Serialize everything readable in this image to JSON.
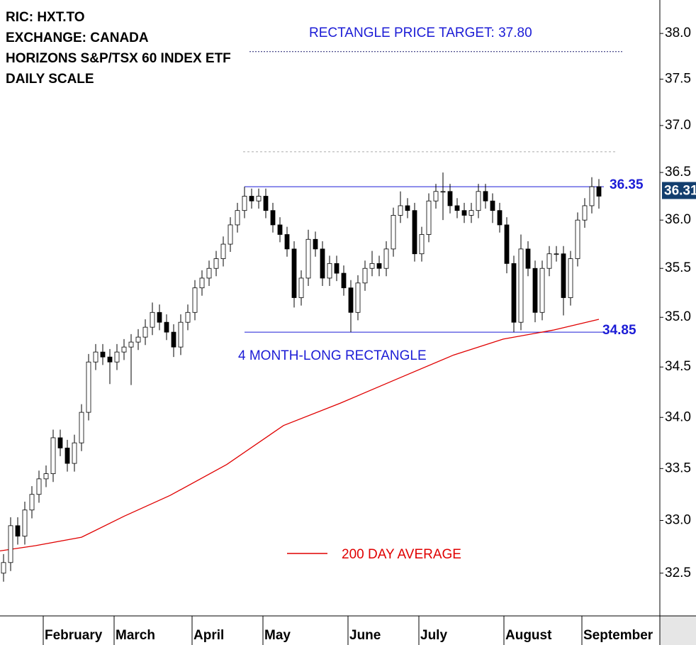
{
  "chart_data": {
    "type": "candlestick",
    "info": [
      "RIC: HXT.TO",
      "EXCHANGE: CANADA",
      "HORIZONS S&P/TSX 60 INDEX ETF",
      "DAILY SCALE"
    ],
    "log_scale": true,
    "ylim": [
      32.1,
      38.37
    ],
    "yticks": [
      32.5,
      {
        "value": 33,
        "label": "33.0"
      },
      33.5,
      {
        "value": 34,
        "label": "34.0"
      },
      34.5,
      {
        "value": 35,
        "label": "35.0"
      },
      35.5,
      {
        "value": 36,
        "label": "36.0"
      },
      36.5,
      {
        "value": 37,
        "label": "37.0"
      },
      37.5,
      {
        "value": 38,
        "label": "38.0"
      }
    ],
    "categories": [
      null,
      null,
      null,
      null,
      null,
      null,
      "February",
      null,
      null,
      null,
      null,
      null,
      null,
      null,
      null,
      null,
      "March",
      null,
      null,
      null,
      null,
      null,
      null,
      null,
      null,
      null,
      null,
      "April",
      null,
      null,
      null,
      null,
      null,
      null,
      null,
      null,
      null,
      "May",
      null,
      null,
      null,
      null,
      null,
      null,
      null,
      null,
      null,
      null,
      null,
      "June",
      null,
      null,
      null,
      null,
      null,
      null,
      null,
      null,
      null,
      "July",
      null,
      null,
      null,
      null,
      null,
      null,
      null,
      null,
      null,
      null,
      null,
      "August",
      null,
      null,
      null,
      null,
      null,
      null,
      null,
      null,
      null,
      null,
      "September",
      null,
      null
    ],
    "open": [
      32.5,
      32.6,
      32.95,
      32.85,
      33.1,
      33.25,
      33.4,
      33.45,
      33.8,
      33.7,
      33.55,
      33.75,
      34.05,
      34.55,
      34.65,
      34.6,
      34.55,
      34.65,
      34.7,
      34.75,
      34.8,
      34.9,
      35.05,
      34.95,
      34.85,
      34.7,
      34.95,
      35.05,
      35.3,
      35.4,
      35.5,
      35.6,
      35.75,
      35.95,
      36.1,
      36.25,
      36.2,
      36.25,
      36.1,
      35.95,
      35.85,
      35.7,
      35.2,
      35.4,
      35.8,
      35.7,
      35.4,
      35.55,
      35.45,
      35.3,
      35.05,
      35.35,
      35.5,
      35.55,
      35.5,
      35.7,
      36.05,
      36.15,
      36.1,
      35.65,
      35.85,
      36.2,
      36.3,
      36.3,
      36.15,
      36.1,
      36.05,
      36.1,
      36.3,
      36.2,
      36.1,
      35.95,
      35.55,
      34.95,
      35.7,
      35.5,
      35.05,
      35.5,
      35.65,
      35.65,
      35.2,
      35.6,
      36.0,
      36.15,
      36.35
    ],
    "high": [
      32.68,
      33.03,
      33.03,
      33.18,
      33.33,
      33.48,
      33.53,
      33.88,
      33.88,
      33.78,
      33.83,
      34.13,
      34.63,
      34.73,
      34.73,
      34.68,
      34.73,
      34.78,
      34.83,
      34.88,
      34.98,
      35.15,
      35.13,
      35.03,
      34.93,
      35.03,
      35.13,
      35.38,
      35.48,
      35.58,
      35.68,
      35.83,
      36.03,
      36.18,
      36.35,
      36.33,
      36.33,
      36.33,
      36.18,
      36.03,
      35.93,
      35.78,
      35.48,
      35.9,
      35.88,
      35.78,
      35.63,
      35.63,
      35.53,
      35.38,
      35.43,
      35.58,
      35.68,
      35.63,
      35.78,
      36.13,
      36.3,
      36.23,
      36.18,
      35.93,
      36.28,
      36.38,
      36.5,
      36.38,
      36.23,
      36.18,
      36.18,
      36.38,
      36.38,
      36.28,
      36.18,
      36.03,
      35.63,
      35.85,
      35.78,
      35.58,
      35.58,
      35.73,
      35.73,
      35.73,
      35.68,
      36.08,
      36.23,
      36.45,
      36.43
    ],
    "low": [
      32.42,
      32.52,
      32.77,
      32.77,
      33.02,
      33.17,
      33.32,
      33.37,
      33.62,
      33.47,
      33.47,
      33.67,
      33.97,
      34.47,
      34.52,
      34.33,
      34.47,
      34.57,
      34.32,
      34.67,
      34.72,
      34.82,
      34.87,
      34.77,
      34.6,
      34.62,
      34.87,
      34.97,
      35.22,
      35.32,
      35.42,
      35.52,
      35.67,
      35.87,
      36.02,
      36.12,
      36.12,
      36.02,
      35.87,
      35.77,
      35.62,
      35.1,
      35.12,
      35.32,
      35.62,
      35.32,
      35.32,
      35.37,
      35.22,
      34.85,
      34.97,
      35.27,
      35.42,
      35.42,
      35.42,
      35.62,
      35.97,
      36.02,
      35.57,
      35.57,
      35.77,
      36.12,
      36.0,
      36.07,
      36.02,
      35.97,
      35.97,
      36.02,
      36.12,
      35.97,
      35.87,
      35.45,
      34.85,
      34.87,
      35.42,
      34.95,
      34.97,
      35.42,
      35.57,
      35.02,
      35.12,
      35.52,
      35.92,
      36.07,
      36.12
    ],
    "close": [
      32.6,
      32.95,
      32.85,
      33.1,
      33.25,
      33.4,
      33.45,
      33.8,
      33.7,
      33.55,
      33.75,
      34.05,
      34.55,
      34.65,
      34.6,
      34.55,
      34.65,
      34.7,
      34.75,
      34.8,
      34.9,
      35.05,
      34.95,
      34.85,
      34.7,
      34.95,
      35.05,
      35.3,
      35.4,
      35.5,
      35.6,
      35.75,
      35.95,
      36.1,
      36.25,
      36.2,
      36.25,
      36.1,
      35.95,
      35.85,
      35.7,
      35.2,
      35.4,
      35.8,
      35.7,
      35.4,
      35.55,
      35.45,
      35.3,
      35.05,
      35.35,
      35.5,
      35.55,
      35.5,
      35.7,
      36.05,
      36.15,
      36.1,
      35.65,
      35.85,
      36.2,
      36.3,
      36.3,
      36.15,
      36.1,
      36.05,
      36.1,
      36.3,
      36.2,
      36.1,
      35.95,
      35.55,
      34.95,
      35.7,
      35.5,
      35.05,
      35.5,
      35.65,
      35.65,
      35.2,
      35.6,
      36.0,
      36.15,
      36.35,
      36.25
    ],
    "moving_average": {
      "name": "200 DAY AVERAGE",
      "color": "#e00000",
      "x": [
        -0.5,
        4.5,
        11,
        17,
        23.5,
        31.5,
        39.5,
        47.5,
        55.5,
        63.5,
        70.5,
        77.5,
        84
      ],
      "values": [
        32.71,
        32.76,
        32.84,
        33.04,
        33.24,
        33.54,
        33.92,
        34.14,
        34.38,
        34.62,
        34.78,
        34.87,
        34.98
      ]
    },
    "levels": [
      36.35,
      34.85
    ],
    "reference_line": 36.72,
    "target": 37.8,
    "target_label": "RECTANGLE PRICE TARGET: 37.80",
    "pattern_label": "4 MONTH-LONG RECTANGLE",
    "last_price": 36.31
  }
}
